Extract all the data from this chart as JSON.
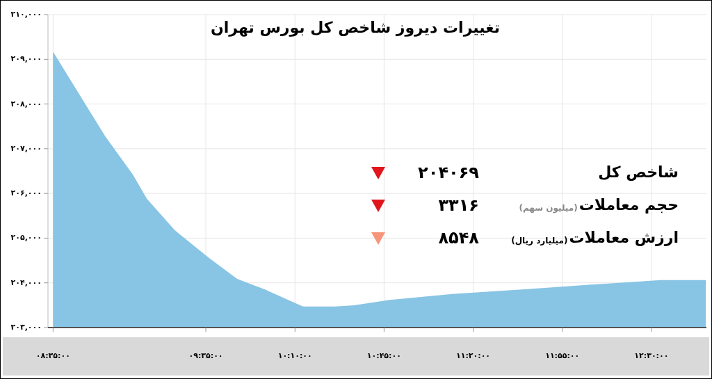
{
  "chart_data": {
    "type": "area",
    "title": "تغییرات دیروز شاخص کل بورس تهران",
    "x": [
      8.583,
      8.742,
      8.924,
      9.106,
      9.197,
      9.379,
      9.606,
      9.788,
      9.97,
      10.152,
      10.22,
      10.424,
      10.561,
      10.788,
      11.197,
      11.652,
      12.106,
      12.288,
      12.561,
      12.856
    ],
    "values": [
      209170,
      208290,
      207280,
      206420,
      205880,
      205180,
      204550,
      204090,
      203850,
      203570,
      203470,
      203470,
      203500,
      203620,
      203750,
      203850,
      203960,
      204000,
      204060,
      204060
    ],
    "color": "#88c4e4",
    "xlim": [
      8.55,
      12.86
    ],
    "xticks": [
      {
        "value": 8.5833,
        "label": "۰۸:۳۵:۰۰"
      },
      {
        "value": 9.5833,
        "label": "۰۹:۳۵:۰۰"
      },
      {
        "value": 10.1667,
        "label": "۱۰:۱۰:۰۰"
      },
      {
        "value": 10.75,
        "label": "۱۰:۴۵:۰۰"
      },
      {
        "value": 11.3333,
        "label": "۱۱:۲۰:۰۰"
      },
      {
        "value": 11.9167,
        "label": "۱۱:۵۵:۰۰"
      },
      {
        "value": 12.5,
        "label": "۱۲:۳۰:۰۰"
      }
    ],
    "ylim": [
      203000,
      210000
    ],
    "yticks": [
      {
        "value": 203000,
        "label": "۲۰۳,۰۰۰"
      },
      {
        "value": 204000,
        "label": "۲۰۴,۰۰۰"
      },
      {
        "value": 205000,
        "label": "۲۰۵,۰۰۰"
      },
      {
        "value": 206000,
        "label": "۲۰۶,۰۰۰"
      },
      {
        "value": 207000,
        "label": "۲۰۷,۰۰۰"
      },
      {
        "value": 208000,
        "label": "۲۰۸,۰۰۰"
      },
      {
        "value": 209000,
        "label": "۲۰۹,۰۰۰"
      },
      {
        "value": 210000,
        "label": "۲۱۰,۰۰۰"
      }
    ],
    "grid": true,
    "annotations": [
      "شاخص کل",
      "۲۰۴۰۶۹",
      "حجم معاملات",
      "(میلیون سهم)",
      "۳۳۱۶",
      "ارزش معاملات",
      "(میلیارد ریال)",
      "۸۵۴۸"
    ]
  }
}
